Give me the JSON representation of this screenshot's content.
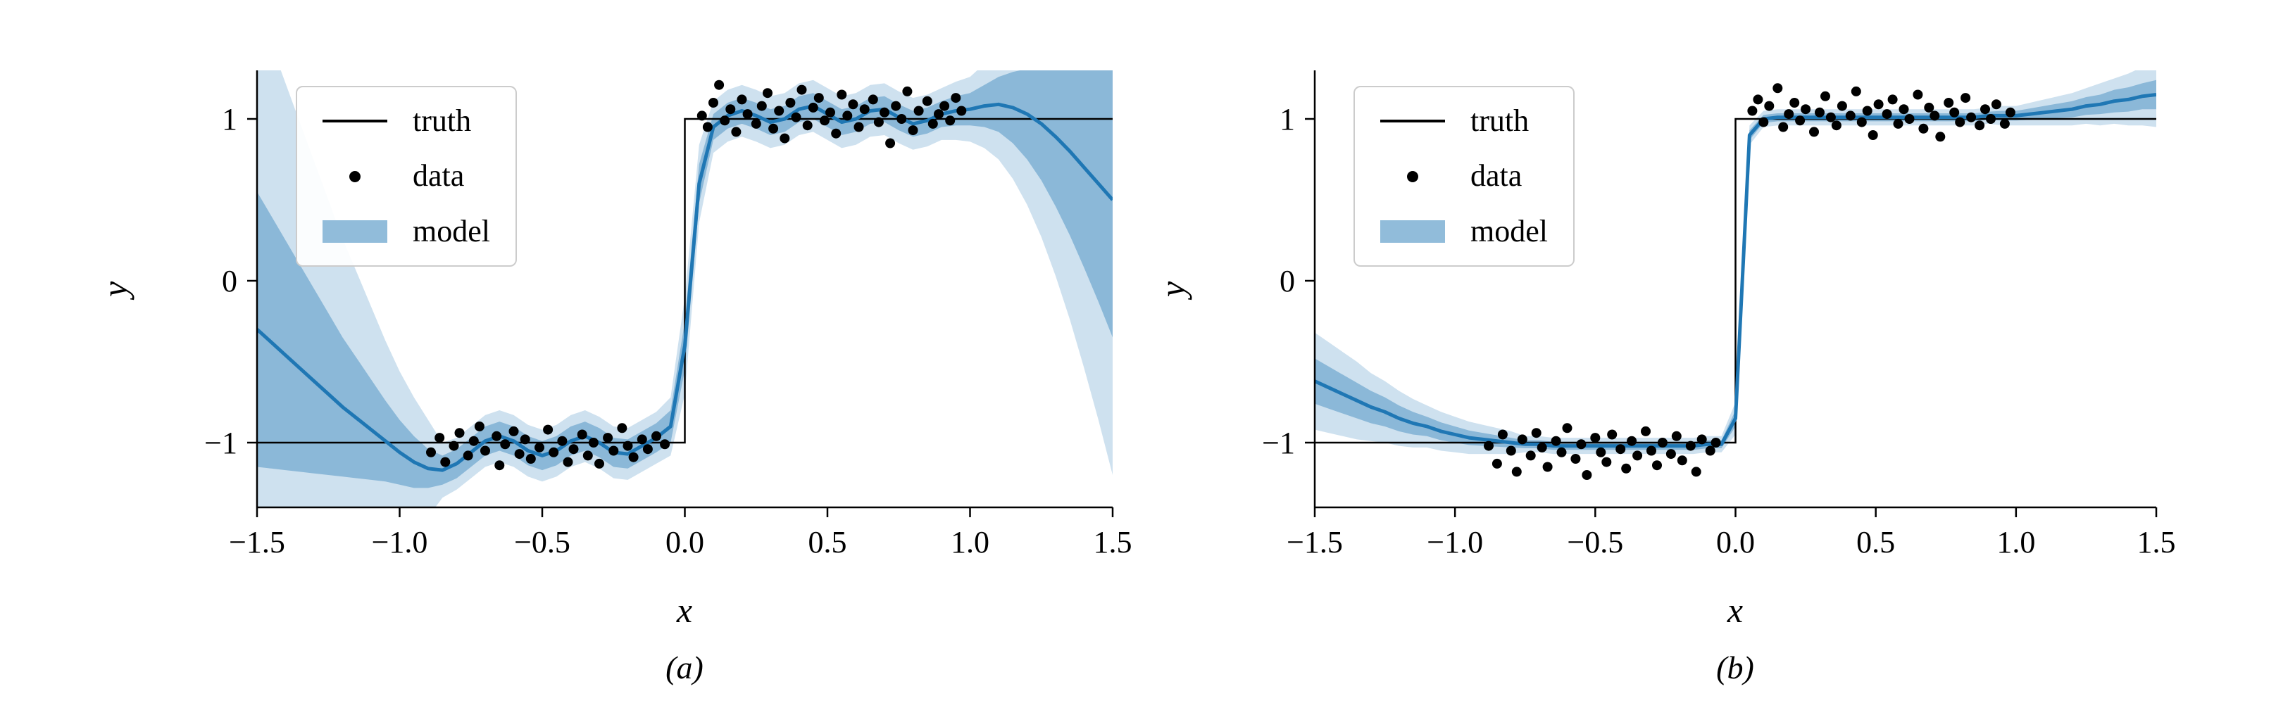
{
  "colors": {
    "background": "#ffffff",
    "truth": "#000000",
    "data_points": "#000000",
    "model_line": "#1f77b4",
    "band_fill": "#1f77b4",
    "band_inner_opacity": 0.38,
    "band_outer_opacity": 0.22,
    "legend_swatch_band": "#91bcda",
    "axis": "#000000"
  },
  "chart_data": [
    {
      "id": "a",
      "type": "line",
      "caption": "(a)",
      "xlabel": "x",
      "ylabel": "y",
      "xlim": [
        -1.5,
        1.5
      ],
      "ylim": [
        -1.4,
        1.3
      ],
      "grid": false,
      "legend_loc": "upper left",
      "legend": [
        "truth",
        "data",
        "model"
      ],
      "xticks": [
        -1.5,
        -1.0,
        -0.5,
        0.0,
        0.5,
        1.0,
        1.5
      ],
      "xtick_labels": [
        "−1.5",
        "−1.0",
        "−0.5",
        "0.0",
        "0.5",
        "1.0",
        "1.5"
      ],
      "yticks": [
        -1,
        0,
        1
      ],
      "ytick_labels": [
        "−1",
        "0",
        "1"
      ],
      "truth": {
        "x": [
          -1.5,
          0,
          0,
          1.5
        ],
        "y": [
          -1,
          -1,
          1,
          1
        ]
      },
      "scatter": {
        "x": [
          -0.89,
          -0.86,
          -0.84,
          -0.81,
          -0.79,
          -0.76,
          -0.74,
          -0.72,
          -0.7,
          -0.66,
          -0.65,
          -0.63,
          -0.6,
          -0.58,
          -0.56,
          -0.54,
          -0.51,
          -0.48,
          -0.46,
          -0.43,
          -0.41,
          -0.39,
          -0.36,
          -0.34,
          -0.32,
          -0.3,
          -0.27,
          -0.25,
          -0.22,
          -0.2,
          -0.18,
          -0.15,
          -0.13,
          -0.1,
          -0.07,
          0.06,
          0.08,
          0.1,
          0.12,
          0.14,
          0.16,
          0.18,
          0.2,
          0.22,
          0.25,
          0.27,
          0.29,
          0.31,
          0.33,
          0.35,
          0.37,
          0.39,
          0.41,
          0.43,
          0.45,
          0.47,
          0.49,
          0.51,
          0.53,
          0.55,
          0.57,
          0.59,
          0.61,
          0.63,
          0.66,
          0.68,
          0.7,
          0.72,
          0.74,
          0.76,
          0.78,
          0.8,
          0.82,
          0.85,
          0.87,
          0.89,
          0.91,
          0.93,
          0.95,
          0.97
        ],
        "y": [
          -1.06,
          -0.97,
          -1.12,
          -1.02,
          -0.94,
          -1.08,
          -0.99,
          -0.9,
          -1.05,
          -0.96,
          -1.14,
          -1.01,
          -0.93,
          -1.07,
          -0.98,
          -1.1,
          -1.03,
          -0.92,
          -1.06,
          -0.99,
          -1.12,
          -1.04,
          -0.95,
          -1.08,
          -1.0,
          -1.13,
          -0.97,
          -1.05,
          -0.91,
          -1.02,
          -1.09,
          -0.98,
          -1.04,
          -0.96,
          -1.01,
          1.02,
          0.95,
          1.1,
          1.21,
          0.99,
          1.06,
          0.92,
          1.12,
          1.03,
          0.97,
          1.08,
          1.16,
          0.94,
          1.05,
          0.88,
          1.1,
          1.01,
          1.18,
          0.96,
          1.07,
          1.13,
          0.99,
          1.04,
          0.91,
          1.15,
          1.02,
          1.09,
          0.95,
          1.06,
          1.12,
          0.98,
          1.04,
          0.85,
          1.08,
          1.0,
          1.17,
          0.93,
          1.05,
          1.11,
          0.97,
          1.03,
          1.08,
          0.99,
          1.13,
          1.05
        ]
      },
      "model": {
        "x": [
          -1.5,
          -1.45,
          -1.4,
          -1.35,
          -1.3,
          -1.25,
          -1.2,
          -1.15,
          -1.1,
          -1.05,
          -1.0,
          -0.95,
          -0.9,
          -0.85,
          -0.8,
          -0.75,
          -0.7,
          -0.65,
          -0.6,
          -0.55,
          -0.5,
          -0.45,
          -0.4,
          -0.35,
          -0.3,
          -0.25,
          -0.2,
          -0.15,
          -0.1,
          -0.05,
          0.0,
          0.05,
          0.1,
          0.15,
          0.2,
          0.25,
          0.3,
          0.35,
          0.4,
          0.45,
          0.5,
          0.55,
          0.6,
          0.65,
          0.7,
          0.75,
          0.8,
          0.85,
          0.9,
          0.95,
          1.0,
          1.05,
          1.1,
          1.15,
          1.2,
          1.25,
          1.3,
          1.35,
          1.4,
          1.45,
          1.5
        ],
        "mean": [
          -0.3,
          -0.38,
          -0.46,
          -0.54,
          -0.62,
          -0.7,
          -0.78,
          -0.85,
          -0.92,
          -0.99,
          -1.06,
          -1.12,
          -1.16,
          -1.17,
          -1.13,
          -1.06,
          -0.99,
          -0.96,
          -0.99,
          -1.05,
          -1.08,
          -1.05,
          -0.99,
          -0.96,
          -1.0,
          -1.06,
          -1.07,
          -1.02,
          -0.97,
          -0.9,
          -0.4,
          0.6,
          0.95,
          1.02,
          1.05,
          1.02,
          0.98,
          1.0,
          1.06,
          1.08,
          1.03,
          0.98,
          1.0,
          1.05,
          1.06,
          1.01,
          0.97,
          0.99,
          1.03,
          1.05,
          1.06,
          1.08,
          1.09,
          1.07,
          1.03,
          0.97,
          0.89,
          0.8,
          0.7,
          0.6,
          0.5
        ],
        "w1": [
          0.85,
          0.78,
          0.71,
          0.64,
          0.57,
          0.5,
          0.43,
          0.37,
          0.31,
          0.25,
          0.2,
          0.16,
          0.12,
          0.09,
          0.09,
          0.09,
          0.09,
          0.09,
          0.09,
          0.09,
          0.09,
          0.09,
          0.09,
          0.09,
          0.09,
          0.09,
          0.09,
          0.09,
          0.09,
          0.1,
          0.15,
          0.12,
          0.08,
          0.08,
          0.08,
          0.08,
          0.08,
          0.08,
          0.08,
          0.08,
          0.08,
          0.08,
          0.08,
          0.08,
          0.08,
          0.08,
          0.08,
          0.08,
          0.08,
          0.09,
          0.1,
          0.13,
          0.17,
          0.22,
          0.28,
          0.35,
          0.43,
          0.52,
          0.62,
          0.73,
          0.85
        ],
        "w2": [
          2.0,
          1.84,
          1.68,
          1.52,
          1.36,
          1.2,
          1.04,
          0.9,
          0.76,
          0.62,
          0.5,
          0.4,
          0.3,
          0.17,
          0.16,
          0.16,
          0.16,
          0.16,
          0.16,
          0.16,
          0.16,
          0.16,
          0.16,
          0.16,
          0.16,
          0.16,
          0.16,
          0.16,
          0.16,
          0.18,
          0.3,
          0.24,
          0.16,
          0.16,
          0.16,
          0.16,
          0.16,
          0.16,
          0.16,
          0.16,
          0.16,
          0.16,
          0.16,
          0.16,
          0.16,
          0.16,
          0.16,
          0.16,
          0.16,
          0.18,
          0.2,
          0.26,
          0.34,
          0.44,
          0.56,
          0.7,
          0.86,
          1.04,
          1.24,
          1.46,
          1.7
        ]
      }
    },
    {
      "id": "b",
      "type": "line",
      "caption": "(b)",
      "xlabel": "x",
      "ylabel": "y",
      "xlim": [
        -1.5,
        1.5
      ],
      "ylim": [
        -1.4,
        1.3
      ],
      "grid": false,
      "legend_loc": "upper left",
      "legend": [
        "truth",
        "data",
        "model"
      ],
      "xticks": [
        -1.5,
        -1.0,
        -0.5,
        0.0,
        0.5,
        1.0,
        1.5
      ],
      "xtick_labels": [
        "−1.5",
        "−1.0",
        "−0.5",
        "0.0",
        "0.5",
        "1.0",
        "1.5"
      ],
      "yticks": [
        -1,
        0,
        1
      ],
      "ytick_labels": [
        "−1",
        "0",
        "1"
      ],
      "truth": {
        "x": [
          -1.5,
          0,
          0,
          1.5
        ],
        "y": [
          -1,
          -1,
          1,
          1
        ]
      },
      "scatter": {
        "x": [
          -0.88,
          -0.85,
          -0.83,
          -0.8,
          -0.78,
          -0.76,
          -0.73,
          -0.71,
          -0.69,
          -0.67,
          -0.64,
          -0.62,
          -0.6,
          -0.57,
          -0.55,
          -0.53,
          -0.5,
          -0.48,
          -0.46,
          -0.44,
          -0.41,
          -0.39,
          -0.37,
          -0.35,
          -0.32,
          -0.3,
          -0.28,
          -0.26,
          -0.23,
          -0.21,
          -0.19,
          -0.16,
          -0.14,
          -0.12,
          -0.09,
          -0.07,
          0.06,
          0.08,
          0.1,
          0.12,
          0.15,
          0.17,
          0.19,
          0.21,
          0.23,
          0.25,
          0.28,
          0.3,
          0.32,
          0.34,
          0.36,
          0.38,
          0.41,
          0.43,
          0.45,
          0.47,
          0.49,
          0.51,
          0.54,
          0.56,
          0.58,
          0.6,
          0.62,
          0.65,
          0.67,
          0.69,
          0.71,
          0.73,
          0.76,
          0.78,
          0.8,
          0.82,
          0.84,
          0.87,
          0.89,
          0.91,
          0.93,
          0.96,
          0.98
        ],
        "y": [
          -1.02,
          -1.13,
          -0.95,
          -1.05,
          -1.18,
          -0.98,
          -1.08,
          -0.94,
          -1.03,
          -1.15,
          -0.99,
          -1.06,
          -0.91,
          -1.1,
          -1.01,
          -1.2,
          -0.97,
          -1.06,
          -1.12,
          -0.95,
          -1.04,
          -1.16,
          -0.99,
          -1.08,
          -0.93,
          -1.05,
          -1.14,
          -1.0,
          -1.07,
          -0.96,
          -1.11,
          -1.02,
          -1.18,
          -0.98,
          -1.05,
          -1.0,
          1.05,
          1.12,
          0.98,
          1.08,
          1.19,
          0.95,
          1.03,
          1.1,
          0.99,
          1.06,
          0.92,
          1.04,
          1.14,
          1.01,
          0.96,
          1.08,
          1.02,
          1.17,
          0.98,
          1.05,
          0.9,
          1.09,
          1.03,
          1.12,
          0.97,
          1.06,
          1.0,
          1.15,
          0.94,
          1.07,
          1.02,
          0.89,
          1.1,
          1.04,
          0.98,
          1.13,
          1.01,
          0.96,
          1.06,
          1.0,
          1.09,
          0.97,
          1.04
        ]
      },
      "model": {
        "x": [
          -1.5,
          -1.45,
          -1.4,
          -1.35,
          -1.3,
          -1.25,
          -1.2,
          -1.15,
          -1.1,
          -1.05,
          -1.0,
          -0.95,
          -0.9,
          -0.85,
          -0.8,
          -0.75,
          -0.7,
          -0.65,
          -0.6,
          -0.55,
          -0.5,
          -0.45,
          -0.4,
          -0.35,
          -0.3,
          -0.25,
          -0.2,
          -0.15,
          -0.1,
          -0.05,
          0.0,
          0.05,
          0.1,
          0.15,
          0.2,
          0.25,
          0.3,
          0.35,
          0.4,
          0.45,
          0.5,
          0.55,
          0.6,
          0.65,
          0.7,
          0.75,
          0.8,
          0.85,
          0.9,
          0.95,
          1.0,
          1.05,
          1.1,
          1.15,
          1.2,
          1.25,
          1.3,
          1.35,
          1.4,
          1.45,
          1.5
        ],
        "mean": [
          -0.62,
          -0.66,
          -0.7,
          -0.74,
          -0.78,
          -0.81,
          -0.85,
          -0.88,
          -0.9,
          -0.93,
          -0.95,
          -0.97,
          -0.98,
          -0.99,
          -1.0,
          -1.01,
          -1.01,
          -1.02,
          -1.02,
          -1.02,
          -1.02,
          -1.02,
          -1.02,
          -1.02,
          -1.02,
          -1.02,
          -1.02,
          -1.02,
          -1.01,
          -1.01,
          -0.85,
          0.9,
          1.0,
          1.01,
          1.01,
          1.01,
          1.01,
          1.01,
          1.01,
          1.01,
          1.01,
          1.01,
          1.01,
          1.01,
          1.01,
          1.01,
          1.01,
          1.01,
          1.02,
          1.02,
          1.02,
          1.03,
          1.04,
          1.05,
          1.06,
          1.08,
          1.09,
          1.11,
          1.12,
          1.14,
          1.15
        ],
        "w1": [
          0.14,
          0.13,
          0.12,
          0.11,
          0.1,
          0.09,
          0.08,
          0.07,
          0.06,
          0.055,
          0.05,
          0.045,
          0.04,
          0.035,
          0.03,
          0.025,
          0.025,
          0.025,
          0.025,
          0.025,
          0.025,
          0.025,
          0.025,
          0.025,
          0.025,
          0.025,
          0.025,
          0.025,
          0.025,
          0.025,
          0.05,
          0.03,
          0.025,
          0.025,
          0.025,
          0.025,
          0.025,
          0.025,
          0.025,
          0.025,
          0.025,
          0.025,
          0.025,
          0.025,
          0.025,
          0.025,
          0.025,
          0.025,
          0.025,
          0.03,
          0.03,
          0.035,
          0.04,
          0.045,
          0.05,
          0.055,
          0.06,
          0.07,
          0.075,
          0.08,
          0.09
        ],
        "w2": [
          0.3,
          0.28,
          0.26,
          0.24,
          0.21,
          0.19,
          0.17,
          0.15,
          0.13,
          0.12,
          0.11,
          0.1,
          0.09,
          0.08,
          0.07,
          0.05,
          0.05,
          0.05,
          0.05,
          0.05,
          0.05,
          0.05,
          0.05,
          0.05,
          0.05,
          0.05,
          0.05,
          0.05,
          0.05,
          0.05,
          0.1,
          0.06,
          0.05,
          0.05,
          0.05,
          0.05,
          0.05,
          0.05,
          0.05,
          0.05,
          0.05,
          0.05,
          0.05,
          0.05,
          0.05,
          0.05,
          0.05,
          0.05,
          0.05,
          0.06,
          0.06,
          0.07,
          0.08,
          0.09,
          0.1,
          0.11,
          0.13,
          0.14,
          0.16,
          0.18,
          0.2
        ]
      }
    }
  ]
}
